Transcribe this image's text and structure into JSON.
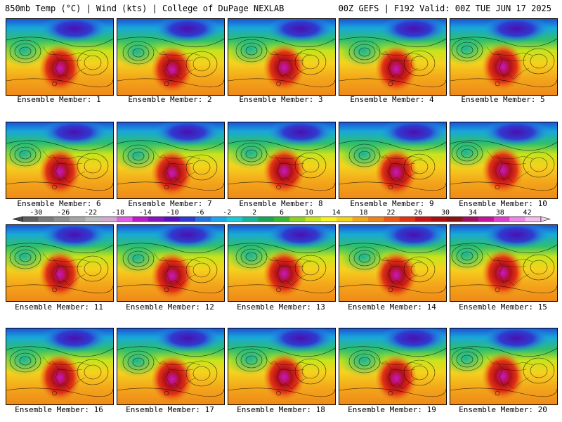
{
  "header": {
    "left": "850mb Temp (°C) | Wind (kts) | College of DuPage NEXLAB",
    "right": "00Z GEFS | F192 Valid: 00Z TUE JUN 17 2025"
  },
  "panels": [
    {
      "caption": "Ensemble Member: 1"
    },
    {
      "caption": "Ensemble Member: 2"
    },
    {
      "caption": "Ensemble Member: 3"
    },
    {
      "caption": "Ensemble Member: 4"
    },
    {
      "caption": "Ensemble Member: 5"
    },
    {
      "caption": "Ensemble Member: 6"
    },
    {
      "caption": "Ensemble Member: 7"
    },
    {
      "caption": "Ensemble Member: 8"
    },
    {
      "caption": "Ensemble Member: 9"
    },
    {
      "caption": "Ensemble Member: 10"
    },
    {
      "caption": "Ensemble Member: 11"
    },
    {
      "caption": "Ensemble Member: 12"
    },
    {
      "caption": "Ensemble Member: 13"
    },
    {
      "caption": "Ensemble Member: 14"
    },
    {
      "caption": "Ensemble Member: 15"
    },
    {
      "caption": "Ensemble Member: 16"
    },
    {
      "caption": "Ensemble Member: 17"
    },
    {
      "caption": "Ensemble Member: 18"
    },
    {
      "caption": "Ensemble Member: 19"
    },
    {
      "caption": "Ensemble Member: 20"
    }
  ],
  "colorbar": {
    "labels": [
      "-30",
      "-26",
      "-22",
      "-18",
      "-14",
      "-10",
      "-6",
      "-2",
      "2",
      "6",
      "10",
      "14",
      "18",
      "22",
      "26",
      "30",
      "34",
      "38",
      "42"
    ],
    "colors": [
      "#5f5f5f",
      "#7b7b7b",
      "#909090",
      "#a6a6a6",
      "#bcbcbc",
      "#d2a9d2",
      "#e25de2",
      "#c018c8",
      "#8a10c0",
      "#5a10c0",
      "#2f3bd0",
      "#1f74e0",
      "#19a6ee",
      "#1bc8d8",
      "#18b49a",
      "#1aa554",
      "#37b82f",
      "#8cd21e",
      "#c8e41a",
      "#f7f224",
      "#f5d21e",
      "#f3a71b",
      "#ef8218",
      "#ea5a16",
      "#e23414",
      "#cb1414",
      "#a80f10",
      "#88140f",
      "#a0105f",
      "#c21598",
      "#df3ed0",
      "#ee86e6",
      "#f4bdee"
    ]
  }
}
